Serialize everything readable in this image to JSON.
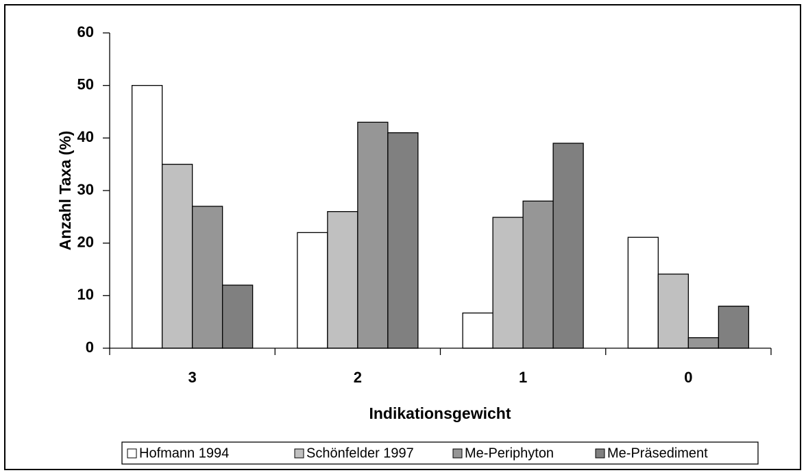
{
  "chart_data": {
    "type": "bar",
    "x_label": "Indikationsgewicht",
    "y_label": "Anzahl Taxa (%)",
    "categories": [
      "3",
      "2",
      "1",
      "0"
    ],
    "series": [
      {
        "name": "Hofmann 1994",
        "color": "#ffffff",
        "values": [
          50,
          22,
          6.7,
          21.1
        ]
      },
      {
        "name": "Schönfelder 1997",
        "color": "#c0c0c0",
        "values": [
          35,
          26,
          24.9,
          14.1
        ]
      },
      {
        "name": "Me-Periphyton",
        "color": "#969696",
        "values": [
          27,
          43,
          28,
          2
        ]
      },
      {
        "name": "Me-Präsediment",
        "color": "#808080",
        "values": [
          12,
          41,
          39,
          8
        ]
      }
    ],
    "ylim": [
      0,
      60
    ],
    "yticks": [
      0,
      10,
      20,
      30,
      40,
      50,
      60
    ],
    "grid": false,
    "legend": "bottom"
  }
}
